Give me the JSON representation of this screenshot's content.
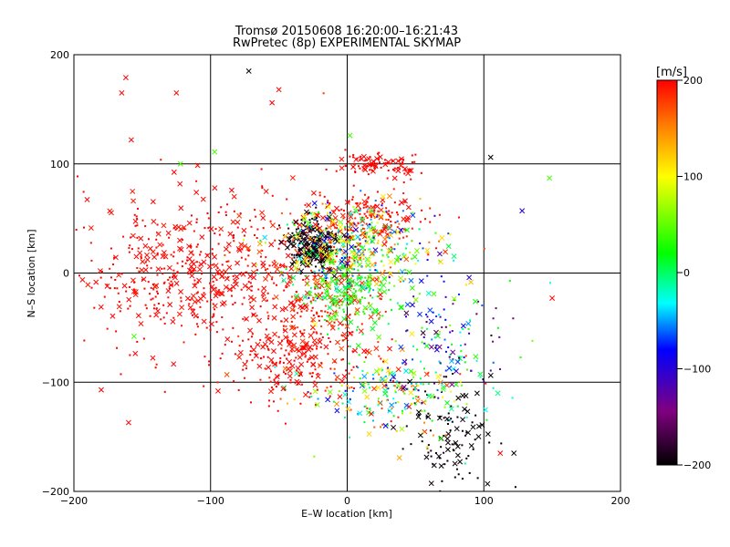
{
  "chart_data": {
    "type": "scatter",
    "title_line1": "Tromsø 20150608 16:20:00–16:21:43",
    "title_line2": "RwPretec (8p) EXPERIMENTAL SKYMAP",
    "xlabel": "E–W location [km]",
    "ylabel": "N–S location [km]",
    "xlim": [
      -200,
      200
    ],
    "ylim": [
      -200,
      200
    ],
    "xticks": [
      -200,
      -100,
      0,
      100,
      200
    ],
    "yticks": [
      -200,
      -100,
      0,
      100,
      200
    ],
    "xtick_labels": [
      "−200",
      "−100",
      "0",
      "100",
      "200"
    ],
    "ytick_labels": [
      "−200",
      "−100",
      "0",
      "100",
      "200"
    ],
    "grid": true,
    "markers": [
      "cross (x)",
      "dot (+)"
    ],
    "colorbar": {
      "unit": "[m/s]",
      "range": [
        -200,
        200
      ],
      "ticks": [
        200,
        100,
        0,
        -100,
        -200
      ],
      "tick_labels": [
        "200",
        "100",
        "0",
        "−100",
        "−200"
      ],
      "colormap": [
        "#000000",
        "#800080",
        "#0000ff",
        "#00ffff",
        "#00ff00",
        "#ffff00",
        "#ff8000",
        "#ff0000"
      ]
    },
    "clusters": [
      {
        "name": "west-red-spread",
        "cx": -110,
        "cy": 0,
        "sx": 45,
        "sy": 35,
        "n": 520,
        "vel": 200,
        "vspread": 10
      },
      {
        "name": "central-red",
        "cx": -20,
        "cy": -20,
        "sx": 25,
        "sy": 40,
        "n": 320,
        "vel": 190,
        "vspread": 20
      },
      {
        "name": "red-band-north",
        "cx": 15,
        "cy": 50,
        "sx": 20,
        "sy": 12,
        "n": 180,
        "vel": 195,
        "vspread": 10
      },
      {
        "name": "red-streak-top",
        "cx": 15,
        "cy": 100,
        "sx": 8,
        "sy": 5,
        "n": 60,
        "vel": 200,
        "vspread": 5
      },
      {
        "name": "red-streak-ne",
        "cx": 42,
        "cy": 95,
        "sx": 5,
        "sy": 7,
        "n": 30,
        "vel": 200,
        "vspread": 5
      },
      {
        "name": "black-nw-band",
        "cx": -25,
        "cy": 25,
        "sx": 9,
        "sy": 12,
        "n": 230,
        "vel": -195,
        "vspread": 10
      },
      {
        "name": "mixed-centre",
        "cx": 5,
        "cy": 20,
        "sx": 30,
        "sy": 20,
        "n": 420,
        "vel": 30,
        "vspread": 140
      },
      {
        "name": "green-cyan-core",
        "cx": 0,
        "cy": -20,
        "sx": 15,
        "sy": 15,
        "n": 150,
        "vel": 20,
        "vspread": 30
      },
      {
        "name": "southeast-black",
        "cx": 75,
        "cy": -150,
        "sx": 18,
        "sy": 25,
        "n": 110,
        "vel": -200,
        "vspread": 10
      },
      {
        "name": "south-mixed",
        "cx": 35,
        "cy": -110,
        "sx": 30,
        "sy": 20,
        "n": 220,
        "vel": 60,
        "vspread": 150
      },
      {
        "name": "east-mixed",
        "cx": 70,
        "cy": -60,
        "sx": 25,
        "sy": 30,
        "n": 140,
        "vel": -60,
        "vspread": 130
      },
      {
        "name": "south-red",
        "cx": -40,
        "cy": -80,
        "sx": 25,
        "sy": 20,
        "n": 160,
        "vel": 200,
        "vspread": 10
      }
    ],
    "isolated_points": [
      {
        "x": -165,
        "y": 165,
        "vel": 200
      },
      {
        "x": -162,
        "y": 179,
        "vel": 200
      },
      {
        "x": -158,
        "y": 122,
        "vel": 200
      },
      {
        "x": -125,
        "y": 165,
        "vel": 200
      },
      {
        "x": -72,
        "y": 185,
        "vel": -200
      },
      {
        "x": -55,
        "y": 156,
        "vel": 200
      },
      {
        "x": -50,
        "y": 168,
        "vel": 200
      },
      {
        "x": -122,
        "y": 100,
        "vel": 40
      },
      {
        "x": -97,
        "y": 111,
        "vel": 40
      },
      {
        "x": 105,
        "y": 106,
        "vel": -200
      },
      {
        "x": 148,
        "y": 87,
        "vel": 40
      },
      {
        "x": 128,
        "y": 57,
        "vel": -100
      },
      {
        "x": 150,
        "y": -23,
        "vel": 200
      },
      {
        "x": 122,
        "y": -165,
        "vel": -200
      },
      {
        "x": 112,
        "y": -165,
        "vel": 200
      },
      {
        "x": 2,
        "y": 126,
        "vel": 40
      },
      {
        "x": -180,
        "y": -107,
        "vel": 200
      },
      {
        "x": -156,
        "y": -58,
        "vel": 40
      },
      {
        "x": -160,
        "y": -137,
        "vel": 200
      }
    ]
  }
}
